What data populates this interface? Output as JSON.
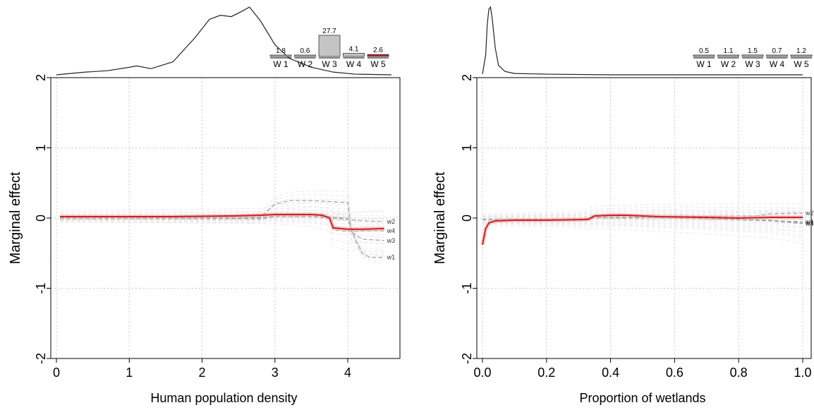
{
  "colors": {
    "fitted": "#cc1f1f",
    "weak": "#c9c9c9",
    "dashed": "#a6a6a6",
    "grid": "#c8c8c8",
    "axis": "#000000",
    "bar_fill": "#c4c4c4",
    "bar_highlight": "#b02a2a"
  },
  "chart_data": [
    {
      "type": "line",
      "xlabel": "Human population density",
      "ylabel": "Marginal effect",
      "xlim": [
        0,
        4.6
      ],
      "ylim": [
        -2,
        2
      ],
      "x_ticks": [
        0,
        1,
        2,
        3,
        4
      ],
      "x_tick_labels": [
        "0",
        "1",
        "2",
        "3",
        "4"
      ],
      "y_ticks": [
        -2,
        -1,
        0,
        1,
        2
      ],
      "y_tick_labels": [
        "-2",
        "-1",
        "0",
        "1",
        "2"
      ],
      "grid": true,
      "fitted_line": {
        "x": [
          0.05,
          0.8,
          1.6,
          2.4,
          2.8,
          3.0,
          3.2,
          3.5,
          3.65,
          3.75,
          3.8,
          4.0,
          4.2,
          4.5
        ],
        "y": [
          0.02,
          0.02,
          0.02,
          0.03,
          0.04,
          0.05,
          0.05,
          0.05,
          0.04,
          0.0,
          -0.14,
          -0.16,
          -0.16,
          -0.15
        ]
      },
      "series": [
        {
          "name": "w1",
          "x": [
            0.05,
            2.8,
            3.0,
            3.5,
            4.0,
            4.1,
            4.2,
            4.3,
            4.5
          ],
          "y": [
            0.0,
            0.0,
            0.03,
            0.03,
            0.0,
            -0.3,
            -0.5,
            -0.56,
            -0.56
          ]
        },
        {
          "name": "w2",
          "x": [
            0.05,
            2.8,
            3.0,
            3.5,
            4.0,
            4.2,
            4.5
          ],
          "y": [
            -0.01,
            -0.01,
            0.02,
            0.02,
            -0.02,
            -0.04,
            -0.05
          ]
        },
        {
          "name": "w3",
          "x": [
            0.05,
            2.8,
            3.0,
            3.2,
            3.5,
            4.0,
            4.05,
            4.2,
            4.5
          ],
          "y": [
            0.01,
            0.01,
            0.2,
            0.25,
            0.25,
            0.22,
            -0.2,
            -0.3,
            -0.32
          ]
        },
        {
          "name": "w4",
          "x": [
            0.05,
            2.8,
            3.0,
            3.5,
            3.75,
            3.8,
            4.0,
            4.5
          ],
          "y": [
            0.02,
            0.03,
            0.05,
            0.05,
            0.02,
            -0.17,
            -0.19,
            -0.18
          ]
        }
      ],
      "marginal_bars": {
        "categories": [
          "W 1",
          "W 2",
          "W 3",
          "W 4",
          "W 5"
        ],
        "values": [
          1.8,
          0.6,
          27.7,
          4.1,
          2.6
        ],
        "value_labels": [
          "1.8",
          "0.6",
          "27.7",
          "4.1",
          "2.6"
        ],
        "highlight": "W 5"
      },
      "density": {
        "x": [
          0.0,
          0.4,
          0.7,
          1.0,
          1.1,
          1.3,
          1.6,
          1.9,
          2.1,
          2.25,
          2.4,
          2.55,
          2.65,
          2.8,
          3.0,
          3.2,
          3.5,
          3.8,
          4.1,
          4.6
        ],
        "y": [
          0.01,
          0.05,
          0.07,
          0.12,
          0.14,
          0.1,
          0.2,
          0.55,
          0.82,
          0.88,
          0.86,
          0.94,
          1.0,
          0.8,
          0.45,
          0.25,
          0.12,
          0.05,
          0.02,
          0.01
        ]
      }
    },
    {
      "type": "line",
      "xlabel": "Proportion of wetlands",
      "ylabel": "Marginal effect",
      "xlim": [
        0,
        1
      ],
      "ylim": [
        -2,
        2
      ],
      "x_ticks": [
        0.0,
        0.2,
        0.4,
        0.6,
        0.8,
        1.0
      ],
      "x_tick_labels": [
        "0.0",
        "0.2",
        "0.4",
        "0.6",
        "0.8",
        "1.0"
      ],
      "y_ticks": [
        -2,
        -1,
        0,
        1,
        2
      ],
      "y_tick_labels": [
        "-2",
        "-1",
        "0",
        "1",
        "2"
      ],
      "grid": true,
      "fitted_line": {
        "x": [
          0.0,
          0.01,
          0.02,
          0.04,
          0.1,
          0.2,
          0.33,
          0.35,
          0.4,
          0.45,
          0.55,
          0.7,
          0.8,
          0.9,
          1.0
        ],
        "y": [
          -0.38,
          -0.15,
          -0.07,
          -0.04,
          -0.03,
          -0.03,
          -0.02,
          0.03,
          0.04,
          0.04,
          0.02,
          0.01,
          0.0,
          0.01,
          0.01
        ]
      },
      "series": [
        {
          "name": "w2",
          "x": [
            0.0,
            0.3,
            0.35,
            0.6,
            0.85,
            0.9,
            1.0
          ],
          "y": [
            -0.02,
            -0.02,
            0.02,
            0.02,
            0.03,
            0.06,
            0.07
          ]
        },
        {
          "name": "w1",
          "x": [
            0.0,
            0.3,
            0.35,
            0.6,
            0.9,
            1.0
          ],
          "y": [
            -0.02,
            -0.02,
            0.0,
            0.0,
            -0.04,
            -0.05
          ]
        },
        {
          "name": "w3",
          "x": [
            0.0,
            0.3,
            0.35,
            0.6,
            0.9,
            1.0
          ],
          "y": [
            -0.02,
            -0.02,
            0.01,
            0.01,
            -0.03,
            -0.07
          ]
        },
        {
          "name": "w4",
          "x": [
            0.0,
            0.3,
            0.35,
            0.6,
            0.9,
            1.0
          ],
          "y": [
            -0.02,
            -0.02,
            0.01,
            0.0,
            -0.04,
            -0.08
          ]
        }
      ],
      "marginal_bars": {
        "categories": [
          "W 1",
          "W 2",
          "W 3",
          "W 4",
          "W 5"
        ],
        "values": [
          0.5,
          1.1,
          1.5,
          0.7,
          1.2
        ],
        "value_labels": [
          "0.5",
          "1.1",
          "1.5",
          "0.7",
          "1.2"
        ],
        "highlight": ""
      },
      "density": {
        "x": [
          0.0,
          0.01,
          0.015,
          0.02,
          0.025,
          0.03,
          0.04,
          0.05,
          0.07,
          0.1,
          0.2,
          0.4,
          0.6,
          0.8,
          1.0
        ],
        "y": [
          0.02,
          0.3,
          0.75,
          0.97,
          1.0,
          0.85,
          0.4,
          0.15,
          0.06,
          0.03,
          0.02,
          0.01,
          0.01,
          0.01,
          0.01
        ]
      }
    }
  ]
}
